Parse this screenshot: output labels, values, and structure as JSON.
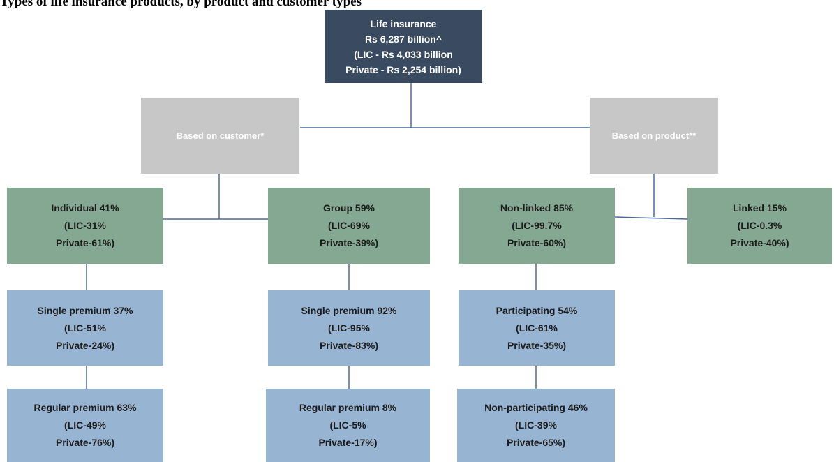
{
  "title": "Types of life insurance products, by product and customer types",
  "root": {
    "line1": "Life insurance",
    "line2": "Rs 6,287 billion^",
    "line3": "(LIC - Rs 4,033 billion",
    "line4": "Private - Rs 2,254 billion)"
  },
  "categories": {
    "customer": "Based on customer*",
    "product": "Based on product**"
  },
  "nodes": {
    "individual": {
      "label": "Individual 41%",
      "lic": "(LIC-31%",
      "private": "Private-61%)"
    },
    "group": {
      "label": "Group 59%",
      "lic": "(LIC-69%",
      "private": "Private-39%)"
    },
    "nonlinked": {
      "label": "Non-linked 85%",
      "lic": "(LIC-99.7%",
      "private": "Private-60%)"
    },
    "linked": {
      "label": "Linked 15%",
      "lic": "(LIC-0.3%",
      "private": "Private-40%)"
    },
    "ind_single": {
      "label": "Single premium 37%",
      "lic": "(LIC-51%",
      "private": "Private-24%)"
    },
    "ind_regular": {
      "label": "Regular premium 63%",
      "lic": "(LIC-49%",
      "private": "Private-76%)"
    },
    "grp_single": {
      "label": "Single premium 92%",
      "lic": "(LIC-95%",
      "private": "Private-83%)"
    },
    "grp_regular": {
      "label": "Regular premium 8%",
      "lic": "(LIC-5%",
      "private": "Private-17%)"
    },
    "participating": {
      "label": "Participating 54%",
      "lic": "(LIC-61%",
      "private": "Private-35%)"
    },
    "nonparticipating": {
      "label": "Non-participating 46%",
      "lic": "(LIC-39%",
      "private": "Private-65%)"
    }
  },
  "colors": {
    "root": "#3a4a60",
    "category": "#c7c7c7",
    "level2": "#84a891",
    "level3": "#98b4d3",
    "connector": "#4a6a9a"
  }
}
